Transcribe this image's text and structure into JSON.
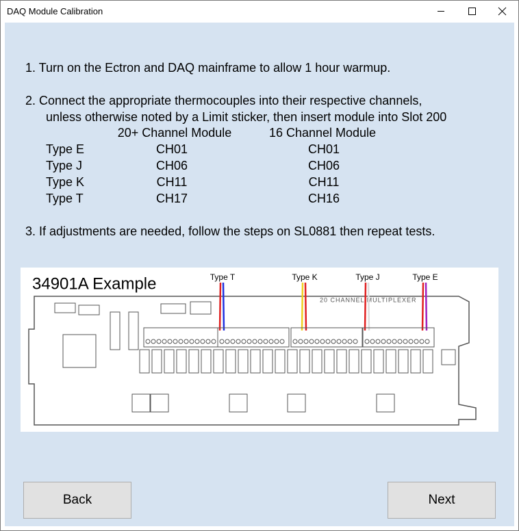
{
  "window": {
    "title": "DAQ Module Calibration"
  },
  "instructions": {
    "step1": "1.  Turn on the Ectron and DAQ mainframe to allow 1 hour warmup.",
    "step2_line1": "2.  Connect the appropriate thermocouples into their respective channels,",
    "step2_line2": "unless otherwise noted by a Limit sticker, then insert module into Slot 200",
    "step3": "3.  If adjustments are needed, follow the steps on SL0881 then repeat tests."
  },
  "table": {
    "headers": [
      "20+ Channel Module",
      "16 Channel Module"
    ],
    "rows": [
      [
        "Type E",
        "CH01",
        "CH01"
      ],
      [
        "Type J",
        "CH06",
        "CH06"
      ],
      [
        "Type K",
        "CH11",
        "CH11"
      ],
      [
        "Type T",
        "CH17",
        "CH16"
      ]
    ]
  },
  "figure": {
    "title": "34901A Example",
    "wire_labels": [
      "Type T",
      "Type K",
      "Type J",
      "Type E"
    ],
    "board_label": "20 CHANNEL MULTIPLEXER"
  },
  "buttons": [
    "Back",
    "Next"
  ]
}
